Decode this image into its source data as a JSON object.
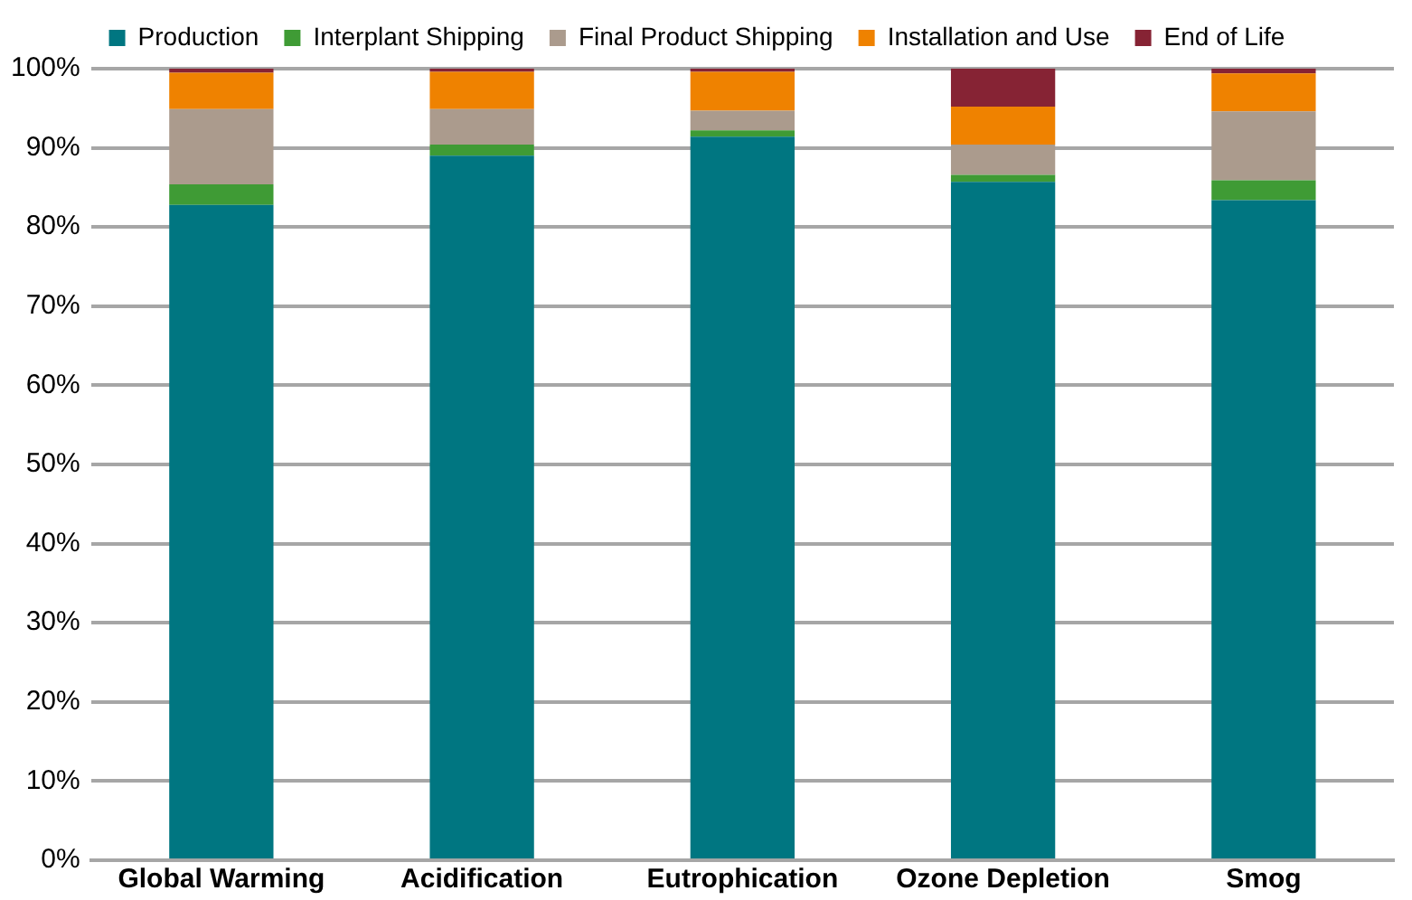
{
  "chart_data": {
    "type": "bar",
    "stacked": true,
    "categories": [
      "Global Warming",
      "Acidification",
      "Eutrophication",
      "Ozone Depletion",
      "Smog"
    ],
    "series": [
      {
        "name": "Production",
        "color": "#007681",
        "values": [
          82.8,
          89.0,
          91.4,
          85.7,
          83.4
        ]
      },
      {
        "name": "Interplant Shipping",
        "color": "#3f9b35",
        "values": [
          2.6,
          1.4,
          0.8,
          0.9,
          2.5
        ]
      },
      {
        "name": "Final Product Shipping",
        "color": "#ab9b8d",
        "values": [
          9.5,
          4.5,
          2.5,
          3.8,
          8.7
        ]
      },
      {
        "name": "Installation and Use",
        "color": "#ef8200",
        "values": [
          4.6,
          4.7,
          4.9,
          4.8,
          4.8
        ]
      },
      {
        "name": "End of Life",
        "color": "#862334",
        "values": [
          0.5,
          0.4,
          0.4,
          4.8,
          0.6
        ]
      }
    ],
    "ylim": [
      0,
      100
    ],
    "yticks": [
      {
        "value": 0,
        "label": "0%"
      },
      {
        "value": 10,
        "label": "10%"
      },
      {
        "value": 20,
        "label": "20%"
      },
      {
        "value": 30,
        "label": "30%"
      },
      {
        "value": 40,
        "label": "40%"
      },
      {
        "value": 50,
        "label": "50%"
      },
      {
        "value": 60,
        "label": "60%"
      },
      {
        "value": 70,
        "label": "70%"
      },
      {
        "value": 80,
        "label": "80%"
      },
      {
        "value": 90,
        "label": "90%"
      },
      {
        "value": 100,
        "label": "100%"
      }
    ],
    "grid": "y",
    "legend": "top"
  }
}
